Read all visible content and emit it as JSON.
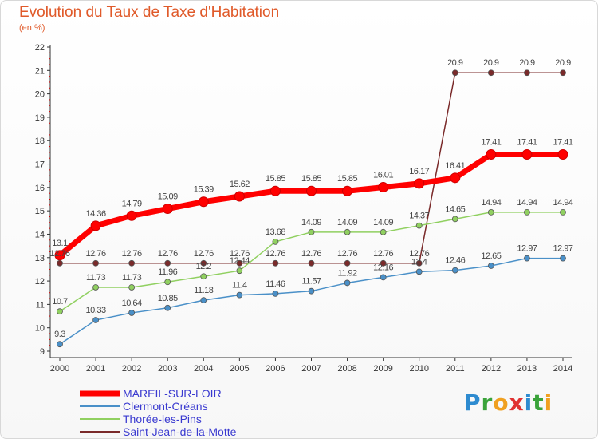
{
  "header": {
    "title": "Evolution du Taux de Taxe d'Habitation",
    "subtitle": "(en %)"
  },
  "logo": {
    "text": "Proxiti",
    "letters": [
      {
        "ch": "P",
        "color": "#2e8bd0"
      },
      {
        "ch": "r",
        "color": "#3aa33a"
      },
      {
        "ch": "o",
        "color": "#f0a020"
      },
      {
        "ch": "x",
        "color": "#e03030"
      },
      {
        "ch": "i",
        "color": "#2e8bd0"
      },
      {
        "ch": "t",
        "color": "#3aa33a"
      },
      {
        "ch": "i",
        "color": "#f0a020"
      }
    ]
  },
  "chart_data": {
    "type": "line",
    "title": "Evolution du Taux de Taxe d'Habitation",
    "ylabel": "(en %)",
    "x": [
      2000,
      2001,
      2002,
      2003,
      2004,
      2005,
      2006,
      2007,
      2008,
      2009,
      2010,
      2011,
      2012,
      2013,
      2014
    ],
    "ylim": [
      9,
      22
    ],
    "yticks": [
      9,
      10,
      11,
      12,
      13,
      14,
      15,
      16,
      17,
      18,
      19,
      20,
      21,
      22
    ],
    "grid": false,
    "legend_position": "bottom-left",
    "series": [
      {
        "name": "MAREIL-SUR-LOIR",
        "color": "#ff0000",
        "values": [
          13.1,
          14.36,
          14.79,
          15.09,
          15.39,
          15.62,
          15.85,
          15.85,
          15.85,
          16.01,
          16.17,
          16.41,
          17.41,
          17.41,
          17.41
        ],
        "labels": [
          "13.1",
          "14.36",
          "14.79",
          "15.09",
          "15.39",
          "15.62",
          "15.85",
          "15.85",
          "15.85",
          "16.01",
          "16.17",
          "16.41",
          "17.41",
          "17.41",
          "17.41"
        ]
      },
      {
        "name": "Clermont-Créans",
        "color": "#4a90c8",
        "values": [
          9.3,
          10.33,
          10.64,
          10.85,
          11.18,
          11.4,
          11.46,
          11.57,
          11.92,
          12.16,
          12.4,
          12.46,
          12.65,
          12.97,
          12.97
        ],
        "labels": [
          "9.3",
          "10.33",
          "10.64",
          "10.85",
          "11.18",
          "11.4",
          "11.46",
          "11.57",
          "11.92",
          "12.16",
          "12.4",
          "12.46",
          "12.65",
          "12.97",
          "12.97"
        ]
      },
      {
        "name": "Thorée-les-Pins",
        "color": "#90d060",
        "values": [
          10.7,
          11.73,
          11.73,
          11.96,
          12.2,
          12.44,
          13.68,
          14.09,
          14.09,
          14.09,
          14.37,
          14.65,
          14.94,
          14.94,
          14.94
        ],
        "labels": [
          "10.7",
          "11.73",
          "11.73",
          "11.96",
          "12.2",
          "12.44",
          "13.68",
          "14.09",
          "14.09",
          "14.09",
          "14.37",
          "14.65",
          "14.94",
          "14.94",
          "14.94"
        ]
      },
      {
        "name": "Saint-Jean-de-la-Motte",
        "color": "#7a2a2a",
        "values": [
          12.76,
          12.76,
          12.76,
          12.76,
          12.76,
          12.76,
          12.76,
          12.76,
          12.76,
          12.76,
          12.76,
          20.9,
          20.9,
          20.9,
          20.9
        ],
        "labels": [
          "12.76",
          "12.76",
          "12.76",
          "12.76",
          "12.76",
          "12.76",
          "12.76",
          "12.76",
          "12.76",
          "12.76",
          "12.76",
          "20.9",
          "20.9",
          "20.9",
          "20.9"
        ]
      }
    ]
  }
}
